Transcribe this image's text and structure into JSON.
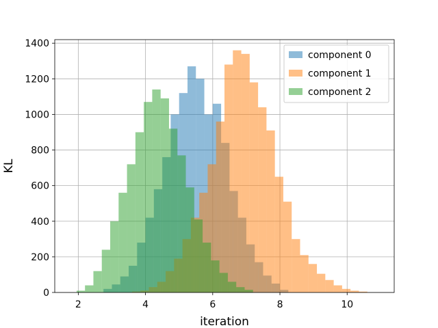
{
  "chart_data": {
    "type": "bar",
    "subtype": "overlapping-histogram",
    "title": "",
    "xlabel": "iteration",
    "ylabel": "KL",
    "xlim": [
      1.3,
      11.4
    ],
    "ylim": [
      0,
      1420
    ],
    "xticks": [
      2,
      4,
      6,
      8,
      10
    ],
    "yticks": [
      0,
      200,
      400,
      600,
      800,
      1000,
      1200,
      1400
    ],
    "grid": true,
    "legend_position": "top-right",
    "bar_opacity": 0.5,
    "series": [
      {
        "name": "component 0",
        "color": "#1f77b4",
        "bin_start": 2.75,
        "bin_width": 0.25,
        "counts": [
          20,
          45,
          90,
          150,
          280,
          420,
          580,
          760,
          1000,
          1120,
          1270,
          1200,
          1000,
          1060,
          840,
          570,
          420,
          270,
          170,
          95,
          50,
          15
        ]
      },
      {
        "name": "component 1",
        "color": "#ff7f0e",
        "bin_start": 3.6,
        "bin_width": 0.25,
        "counts": [
          5,
          10,
          30,
          60,
          120,
          190,
          300,
          420,
          560,
          720,
          960,
          1280,
          1360,
          1340,
          1180,
          1040,
          910,
          650,
          510,
          300,
          210,
          160,
          105,
          70,
          40,
          20,
          10,
          5
        ]
      },
      {
        "name": "component 2",
        "color": "#2ca02c",
        "bin_start": 1.95,
        "bin_width": 0.25,
        "counts": [
          10,
          40,
          120,
          240,
          400,
          560,
          720,
          900,
          1070,
          1140,
          1090,
          920,
          770,
          590,
          410,
          280,
          180,
          110,
          60,
          30,
          15
        ]
      }
    ]
  }
}
